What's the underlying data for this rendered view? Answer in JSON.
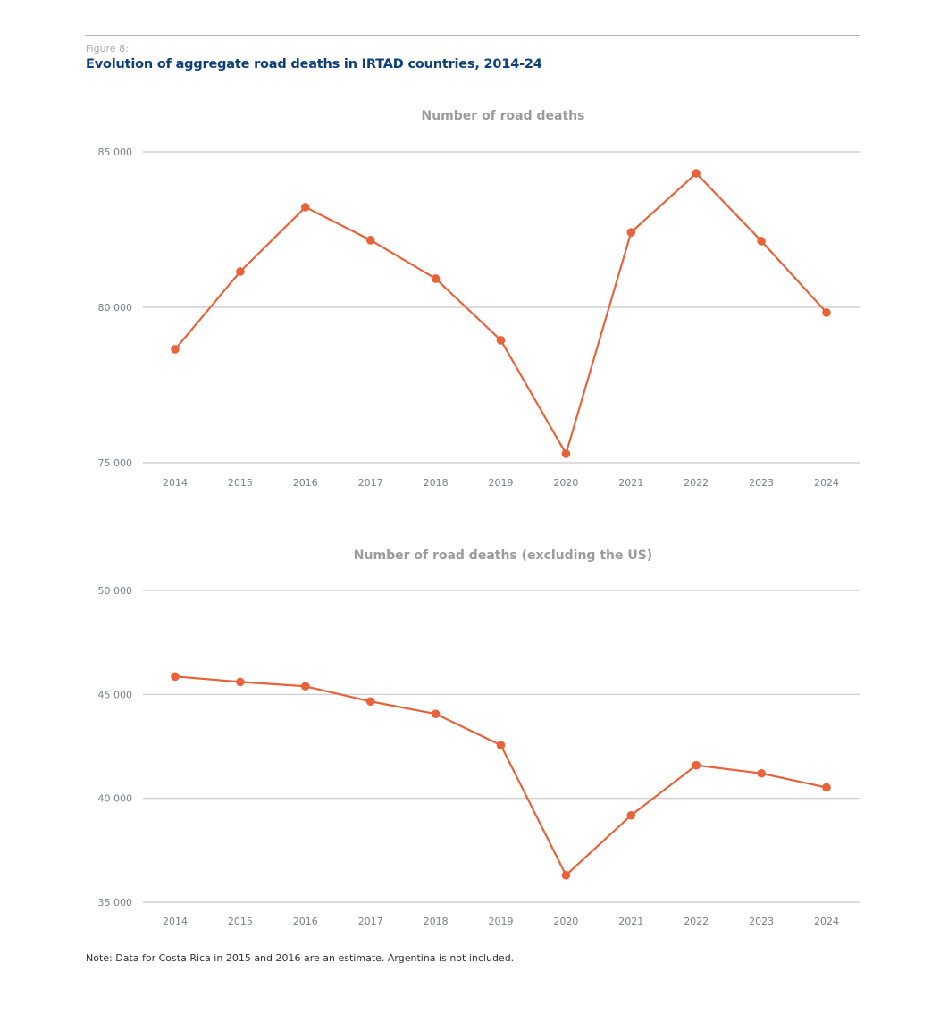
{
  "figure": {
    "label": "Figure 8:",
    "title": "Evolution of aggregate road deaths in IRTAD countries, 2014-24",
    "note": "Note: Data for Costa Rica in 2015 and 2016 are an estimate. Argentina is not included."
  },
  "colors": {
    "line": "#e8623a",
    "grid": "#c8c8c8"
  },
  "chart_data": [
    {
      "type": "line",
      "title": "Number of road deaths",
      "xlabel": "",
      "ylabel": "",
      "categories": [
        "2014",
        "2015",
        "2016",
        "2017",
        "2018",
        "2019",
        "2020",
        "2021",
        "2022",
        "2023",
        "2024"
      ],
      "values": [
        78650,
        81150,
        83220,
        82160,
        80920,
        78940,
        75290,
        82410,
        84310,
        82130,
        79830
      ],
      "ylim": [
        75000,
        85000
      ],
      "yticks": [
        75000,
        80000,
        85000
      ],
      "ytick_labels": [
        "75 000",
        "80 000",
        "85 000"
      ],
      "grid": true,
      "legend": "none"
    },
    {
      "type": "line",
      "title": "Number of road deaths (excluding the US)",
      "xlabel": "",
      "ylabel": "",
      "categories": [
        "2014",
        "2015",
        "2016",
        "2017",
        "2018",
        "2019",
        "2020",
        "2021",
        "2022",
        "2023",
        "2024"
      ],
      "values": [
        45860,
        45600,
        45390,
        44660,
        44060,
        42560,
        36300,
        39180,
        41590,
        41200,
        40520
      ],
      "ylim": [
        35000,
        50000
      ],
      "yticks": [
        35000,
        40000,
        45000,
        50000
      ],
      "ytick_labels": [
        "35 000",
        "40 000",
        "45 000",
        "50 000"
      ],
      "grid": true,
      "legend": "none"
    }
  ]
}
